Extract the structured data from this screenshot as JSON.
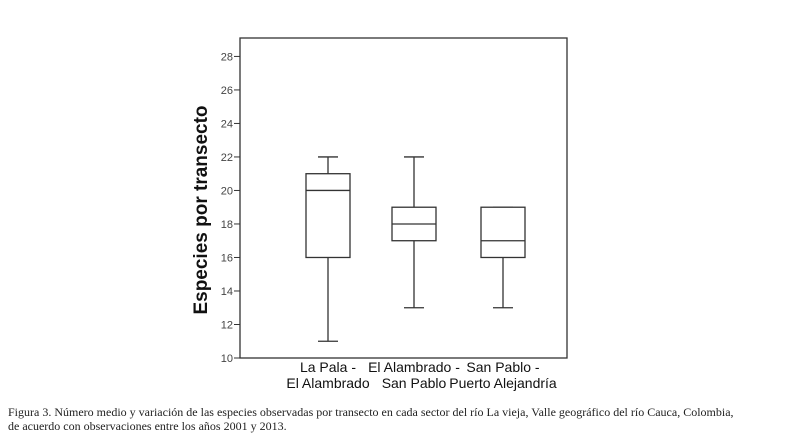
{
  "chart_data": {
    "type": "boxplot",
    "title": "",
    "xlabel": "",
    "ylabel": "Especies por transecto",
    "ylim": [
      10,
      29.1
    ],
    "yticks": [
      10,
      12,
      14,
      16,
      18,
      20,
      22,
      24,
      26,
      28
    ],
    "grid": false,
    "categories": [
      [
        "La Pala -",
        "El Alambrado"
      ],
      [
        "El Alambrado -",
        "San Pablo"
      ],
      [
        "San Pablo -",
        "Puerto Alejandría"
      ]
    ],
    "boxes": [
      {
        "min": 11,
        "q1": 16,
        "median": 20,
        "q3": 21,
        "max": 22
      },
      {
        "min": 13,
        "q1": 17,
        "median": 18,
        "q3": 19,
        "max": 22
      },
      {
        "min": 13,
        "q1": 16,
        "median": 17,
        "q3": 19,
        "max": 19
      }
    ]
  },
  "caption": {
    "line1": "Figura 3. Número medio y variación de las especies observadas por transecto en cada sector del río La vieja, Valle geográfico del río Cauca, Colombia,",
    "line2": "de acuerdo con observaciones entre los años 2001 y 2013."
  }
}
